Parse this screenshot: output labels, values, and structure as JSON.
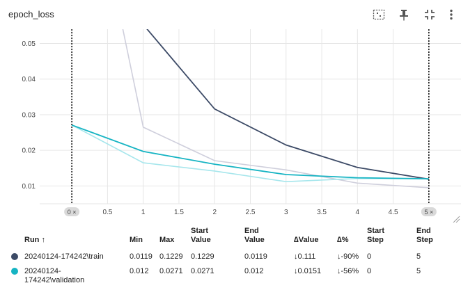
{
  "card": {
    "title": "epoch_loss"
  },
  "toolbar": {
    "fit_icon": "fit-domain-icon",
    "pin_icon": "pin-icon",
    "collapse_icon": "collapse-icon",
    "menu_icon": "more-vert-icon"
  },
  "chart_data": {
    "type": "line",
    "x_ticks": [
      "0",
      "0.5",
      "1",
      "1.5",
      "2",
      "2.5",
      "3",
      "3.5",
      "4",
      "4.5",
      "5"
    ],
    "y_ticks": [
      "0.01",
      "0.02",
      "0.03",
      "0.04",
      "0.05"
    ],
    "xlim": [
      -0.45,
      5.45
    ],
    "ylim": [
      0.005,
      0.054
    ],
    "grid": true,
    "range_markers": [
      {
        "x": 0,
        "label": "0 ×"
      },
      {
        "x": 5,
        "label": "5 ×"
      }
    ],
    "series": [
      {
        "name": "20240124-174242\\train",
        "color": "#3c4a66",
        "raw_color": "#cfcfdc",
        "x": [
          0,
          1,
          2,
          3,
          4,
          5
        ],
        "smoothed": [
          0.1229,
          0.0553,
          0.0316,
          0.0215,
          0.0152,
          0.0119
        ],
        "raw": [
          0.1229,
          0.0265,
          0.0171,
          0.0145,
          0.0108,
          0.0095
        ]
      },
      {
        "name": "20240124-174242\\validation",
        "color": "#16b4c3",
        "raw_color": "#a6e6ec",
        "x": [
          0,
          1,
          2,
          3,
          4,
          5
        ],
        "smoothed": [
          0.0271,
          0.0197,
          0.0161,
          0.0132,
          0.0123,
          0.012
        ],
        "raw": [
          0.0271,
          0.0165,
          0.0142,
          0.0112,
          0.0121,
          0.012
        ]
      }
    ]
  },
  "table": {
    "headers": {
      "run": "Run ↑",
      "min": "Min",
      "max": "Max",
      "start_value_1": "Start",
      "start_value_2": "Value",
      "end_value_1": "End",
      "end_value_2": "Value",
      "delta_value": "∆Value",
      "delta_pct": "∆%",
      "start_step_1": "Start",
      "start_step_2": "Step",
      "end_step_1": "End",
      "end_step_2": "Step"
    },
    "rows": [
      {
        "color": "#3c4a66",
        "run_1": "20240124-174242\\train",
        "run_2": "",
        "min": "0.0119",
        "max": "0.1229",
        "start_value": "0.1229",
        "end_value": "0.0119",
        "delta_value": "↓0.111",
        "delta_pct": "↓-90%",
        "start_step": "0",
        "end_step": "5"
      },
      {
        "color": "#16b4c3",
        "run_1": "20240124-",
        "run_2": "174242\\validation",
        "min": "0.012",
        "max": "0.0271",
        "start_value": "0.0271",
        "end_value": "0.012",
        "delta_value": "↓0.0151",
        "delta_pct": "↓-56%",
        "start_step": "0",
        "end_step": "5"
      }
    ]
  }
}
